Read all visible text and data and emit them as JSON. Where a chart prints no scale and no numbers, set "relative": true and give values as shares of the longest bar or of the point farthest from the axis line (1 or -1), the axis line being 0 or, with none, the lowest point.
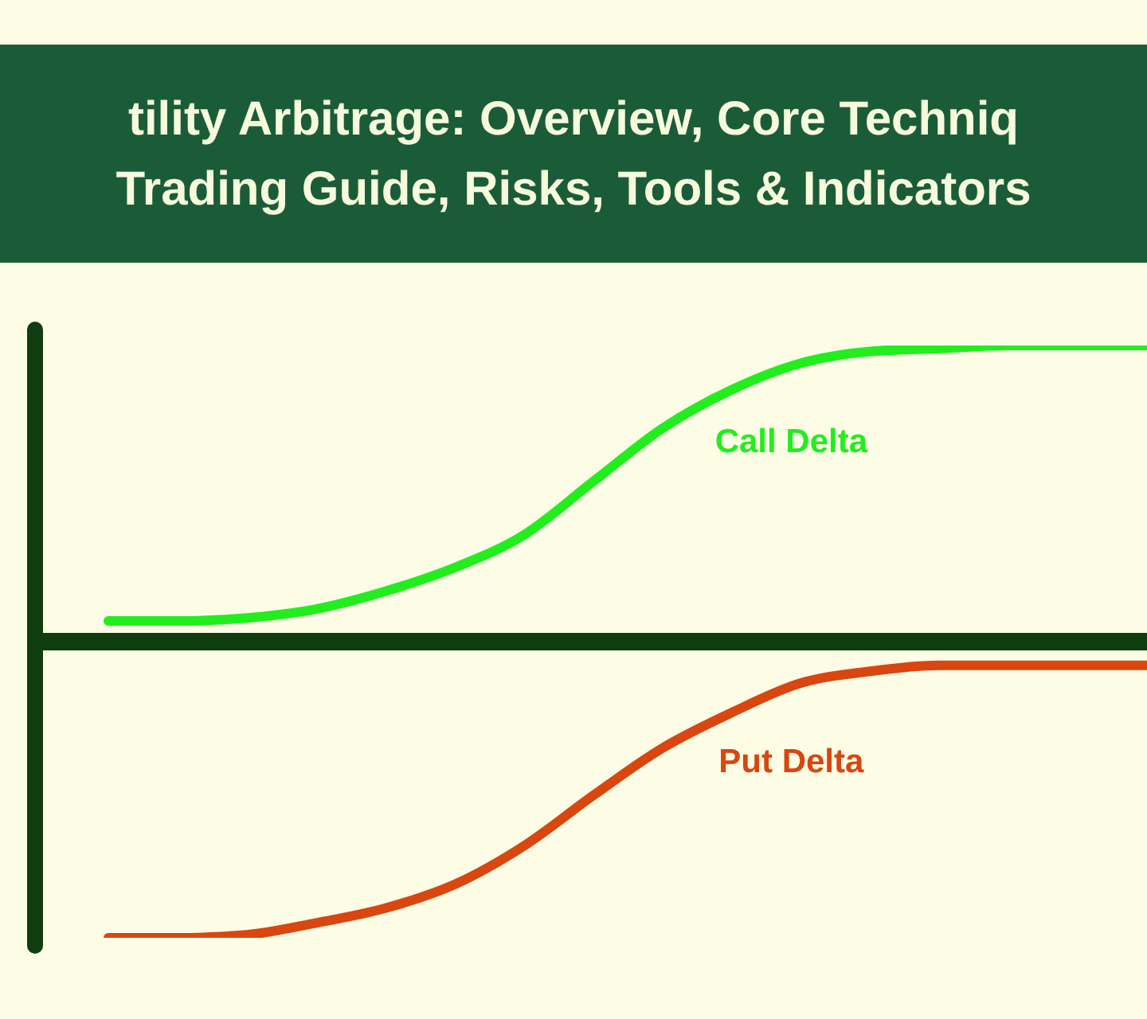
{
  "chart_data": {
    "type": "line",
    "title": "tility Arbitrage: Overview, Core Techniq\nTrading Guide, Risks, Tools & Indicators",
    "relative": true,
    "categories": [
      null,
      null,
      null,
      null,
      null,
      null,
      null,
      null,
      null,
      null,
      null,
      null,
      null,
      null,
      null,
      null
    ],
    "series": [
      {
        "name": "Call Delta",
        "color": "#22ee1e",
        "values": [
          0.07,
          0.07,
          0.08,
          0.11,
          0.17,
          0.25,
          0.36,
          0.54,
          0.72,
          0.85,
          0.94,
          0.98,
          0.99,
          1.0,
          1.0,
          1.0
        ]
      },
      {
        "name": "Put Delta",
        "color": "#d9460f",
        "values": [
          -1.0,
          -1.0,
          -0.99,
          -0.95,
          -0.9,
          -0.82,
          -0.69,
          -0.52,
          -0.36,
          -0.24,
          -0.14,
          -0.1,
          -0.08,
          -0.08,
          -0.08,
          -0.08
        ]
      }
    ],
    "marker": "none",
    "line_style": "solid"
  }
}
